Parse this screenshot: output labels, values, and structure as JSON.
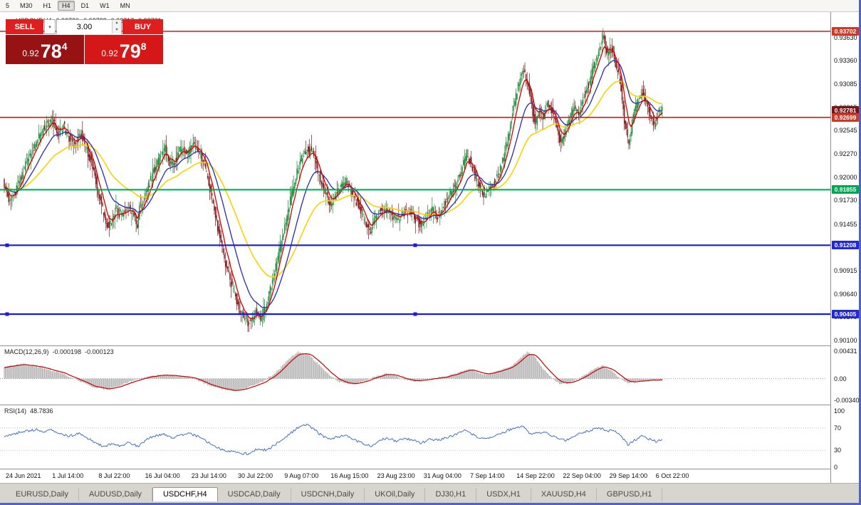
{
  "toolbar": {
    "timeframes": [
      "5",
      "M30",
      "H1",
      "H4",
      "D1",
      "W1",
      "MN"
    ],
    "active": "H4"
  },
  "chart_header": {
    "symbol": "USDCHF,H4",
    "open": "0.92730",
    "high": "0.92788",
    "low": "0.92717",
    "close": "0.92781"
  },
  "trade_panel": {
    "sell_label": "SELL",
    "buy_label": "BUY",
    "volume": "3.00",
    "sell_price": {
      "prefix": "0.92",
      "big": "78",
      "sup": "4"
    },
    "buy_price": {
      "prefix": "0.92",
      "big": "79",
      "sup": "8"
    }
  },
  "tabs": {
    "items": [
      "EURUSD,Daily",
      "AUDUSD,Daily",
      "USDCHF,H4",
      "USDCAD,Daily",
      "USDCNH,Daily",
      "UKOil,Daily",
      "DJ30,H1",
      "USDX,H1",
      "XAUUSD,H4",
      "GBPUSD,H1"
    ],
    "active": "USDCHF,H4"
  },
  "chart_data": {
    "type": "candlestick",
    "symbol": "USDCHF",
    "timeframe": "H4",
    "ohlc_current": {
      "open": 0.9273,
      "high": 0.92788,
      "low": 0.92717,
      "close": 0.92781
    },
    "bars": 590,
    "x_range": [
      6,
      930
    ],
    "y_axis_ticks": [
      "0.93630",
      "0.93360",
      "0.93085",
      "0.92815",
      "0.92545",
      "0.92270",
      "0.92000",
      "0.91730",
      "0.91455",
      "0.91185",
      "0.90915",
      "0.90640",
      "0.90370",
      "0.90100"
    ],
    "colors": {
      "bull": "#1e8c3a",
      "bear": "#7c1a1a"
    },
    "moving_averages": [
      {
        "name": "fast",
        "period": 8,
        "color": "#d40000"
      },
      {
        "name": "mid",
        "period": 24,
        "color": "#2929b8"
      },
      {
        "name": "slow",
        "period": 60,
        "color": "#ffd000"
      }
    ],
    "hlines": [
      {
        "price": 0.93702,
        "label": "0.93702",
        "color": "#cc2222",
        "label_bg": "#cc3a28",
        "width": 1.4,
        "line": true,
        "handles": false
      },
      {
        "price": 0.92781,
        "label": "0.92781",
        "color": "#7b1113",
        "label_bg": "#7b1113",
        "width": 0,
        "line": false,
        "handles": false
      },
      {
        "price": 0.92699,
        "label": "0.92699",
        "color": "#cc2222",
        "label_bg": "#cc3a28",
        "width": 1.6,
        "line": true,
        "handles": false
      },
      {
        "price": 0.91855,
        "label": "0.91855",
        "color": "#00a650",
        "label_bg": "#00a650",
        "width": 2,
        "line": true,
        "handles": false
      },
      {
        "price": 0.91208,
        "label": "0.91208",
        "color": "#1a1ae6",
        "label_bg": "#2228d8",
        "width": 2.2,
        "line": true,
        "handles": true
      },
      {
        "price": 0.90405,
        "label": "0.90405",
        "color": "#1a1ae6",
        "label_bg": "#2228d8",
        "width": 2.2,
        "line": true,
        "handles": true
      }
    ],
    "price_path": [
      [
        6,
        0.9195
      ],
      [
        14,
        0.9168
      ],
      [
        22,
        0.9182
      ],
      [
        32,
        0.9205
      ],
      [
        44,
        0.9228
      ],
      [
        56,
        0.9248
      ],
      [
        66,
        0.9262
      ],
      [
        74,
        0.9268
      ],
      [
        82,
        0.9252
      ],
      [
        90,
        0.926
      ],
      [
        98,
        0.9245
      ],
      [
        106,
        0.9238
      ],
      [
        114,
        0.9252
      ],
      [
        122,
        0.9235
      ],
      [
        130,
        0.9215
      ],
      [
        138,
        0.9185
      ],
      [
        146,
        0.9158
      ],
      [
        152,
        0.9142
      ],
      [
        158,
        0.915
      ],
      [
        164,
        0.9163
      ],
      [
        172,
        0.9155
      ],
      [
        180,
        0.9168
      ],
      [
        186,
        0.9158
      ],
      [
        190,
        0.916
      ],
      [
        193,
        0.9136
      ],
      [
        196,
        0.9165
      ],
      [
        200,
        0.917
      ],
      [
        208,
        0.9185
      ],
      [
        216,
        0.9205
      ],
      [
        224,
        0.9222
      ],
      [
        232,
        0.9235
      ],
      [
        240,
        0.9215
      ],
      [
        248,
        0.9222
      ],
      [
        256,
        0.9235
      ],
      [
        264,
        0.9228
      ],
      [
        272,
        0.924
      ],
      [
        280,
        0.9228
      ],
      [
        288,
        0.9215
      ],
      [
        296,
        0.9185
      ],
      [
        304,
        0.9152
      ],
      [
        312,
        0.9118
      ],
      [
        320,
        0.9092
      ],
      [
        328,
        0.9068
      ],
      [
        336,
        0.9048
      ],
      [
        344,
        0.9037
      ],
      [
        352,
        0.903
      ],
      [
        360,
        0.9045
      ],
      [
        368,
        0.9033
      ],
      [
        376,
        0.9055
      ],
      [
        384,
        0.9082
      ],
      [
        392,
        0.9108
      ],
      [
        400,
        0.914
      ],
      [
        408,
        0.9172
      ],
      [
        416,
        0.92
      ],
      [
        424,
        0.9222
      ],
      [
        432,
        0.9232
      ],
      [
        440,
        0.9228
      ],
      [
        448,
        0.9205
      ],
      [
        456,
        0.9185
      ],
      [
        464,
        0.9168
      ],
      [
        472,
        0.9178
      ],
      [
        480,
        0.919
      ],
      [
        488,
        0.9196
      ],
      [
        496,
        0.918
      ],
      [
        504,
        0.9168
      ],
      [
        512,
        0.9152
      ],
      [
        520,
        0.9135
      ],
      [
        528,
        0.9152
      ],
      [
        536,
        0.9165
      ],
      [
        544,
        0.9162
      ],
      [
        552,
        0.9155
      ],
      [
        560,
        0.915
      ],
      [
        568,
        0.916
      ],
      [
        576,
        0.9158
      ],
      [
        584,
        0.9152
      ],
      [
        592,
        0.9144
      ],
      [
        600,
        0.9155
      ],
      [
        608,
        0.9162
      ],
      [
        616,
        0.9155
      ],
      [
        624,
        0.9168
      ],
      [
        632,
        0.9178
      ],
      [
        640,
        0.919
      ],
      [
        648,
        0.9205
      ],
      [
        656,
        0.9228
      ],
      [
        664,
        0.9212
      ],
      [
        672,
        0.9192
      ],
      [
        680,
        0.918
      ],
      [
        688,
        0.9186
      ],
      [
        696,
        0.9196
      ],
      [
        704,
        0.921
      ],
      [
        712,
        0.9238
      ],
      [
        720,
        0.9272
      ],
      [
        728,
        0.9305
      ],
      [
        736,
        0.9328
      ],
      [
        744,
        0.9302
      ],
      [
        752,
        0.9262
      ],
      [
        758,
        0.9278
      ],
      [
        764,
        0.927
      ],
      [
        770,
        0.9288
      ],
      [
        776,
        0.9278
      ],
      [
        782,
        0.9262
      ],
      [
        788,
        0.9238
      ],
      [
        794,
        0.9252
      ],
      [
        800,
        0.9268
      ],
      [
        806,
        0.9282
      ],
      [
        812,
        0.9272
      ],
      [
        818,
        0.9288
      ],
      [
        824,
        0.9302
      ],
      [
        830,
        0.9315
      ],
      [
        836,
        0.9332
      ],
      [
        842,
        0.9348
      ],
      [
        848,
        0.9366
      ],
      [
        854,
        0.9342
      ],
      [
        860,
        0.9352
      ],
      [
        866,
        0.9328
      ],
      [
        872,
        0.931
      ],
      [
        878,
        0.9262
      ],
      [
        884,
        0.9238
      ],
      [
        890,
        0.9272
      ],
      [
        896,
        0.9288
      ],
      [
        902,
        0.93
      ],
      [
        908,
        0.9288
      ],
      [
        914,
        0.9272
      ],
      [
        920,
        0.9262
      ],
      [
        926,
        0.9278
      ]
    ],
    "macd": {
      "name": "MACD(12,26,9)",
      "value_main": "-0.000198",
      "value_signal": "-0.000123",
      "axis": [
        "0.00431",
        "0.00",
        "-0.00340"
      ],
      "hist_color": "#b4b4b4",
      "signal_color": "#cc0000",
      "path": [
        [
          6,
          0.0018
        ],
        [
          30,
          0.0023
        ],
        [
          60,
          0.0017
        ],
        [
          90,
          0.0007
        ],
        [
          110,
          -0.0003
        ],
        [
          130,
          -0.0013
        ],
        [
          150,
          -0.0017
        ],
        [
          170,
          -0.001
        ],
        [
          190,
          -0.0002
        ],
        [
          210,
          0.0004
        ],
        [
          230,
          0.0006
        ],
        [
          250,
          0.0004
        ],
        [
          270,
          0.0001
        ],
        [
          290,
          -0.0009
        ],
        [
          310,
          -0.0016
        ],
        [
          330,
          -0.0019
        ],
        [
          350,
          -0.0013
        ],
        [
          370,
          -0.0004
        ],
        [
          390,
          0.0012
        ],
        [
          405,
          0.003
        ],
        [
          418,
          0.0042
        ],
        [
          432,
          0.0039
        ],
        [
          446,
          0.0024
        ],
        [
          460,
          0.0008
        ],
        [
          474,
          -0.0004
        ],
        [
          488,
          -0.0009
        ],
        [
          502,
          -0.0007
        ],
        [
          514,
          -0.0003
        ],
        [
          526,
          0.0003
        ],
        [
          540,
          0.0008
        ],
        [
          554,
          0.0005
        ],
        [
          568,
          -0.0001
        ],
        [
          582,
          -0.0004
        ],
        [
          596,
          -0.0002
        ],
        [
          610,
          0.0001
        ],
        [
          624,
          0.0003
        ],
        [
          638,
          0.0007
        ],
        [
          650,
          0.0012
        ],
        [
          660,
          0.0015
        ],
        [
          670,
          0.001
        ],
        [
          682,
          0.0006
        ],
        [
          694,
          0.001
        ],
        [
          706,
          0.0015
        ],
        [
          718,
          0.0019
        ],
        [
          730,
          0.0032
        ],
        [
          740,
          0.0042
        ],
        [
          750,
          0.0036
        ],
        [
          762,
          0.0016
        ],
        [
          774,
          0.0002
        ],
        [
          786,
          -0.0008
        ],
        [
          798,
          -0.0007
        ],
        [
          810,
          -0.0001
        ],
        [
          822,
          0.0006
        ],
        [
          834,
          0.0015
        ],
        [
          846,
          0.0021
        ],
        [
          858,
          0.0013
        ],
        [
          870,
          0.0001
        ],
        [
          882,
          -0.0007
        ],
        [
          894,
          -0.0005
        ],
        [
          906,
          -0.0003
        ],
        [
          918,
          -0.0002
        ],
        [
          928,
          -0.0002
        ]
      ]
    },
    "rsi": {
      "name": "RSI(14)",
      "value": "48.7836",
      "axis": [
        "100",
        "70",
        "30",
        "0"
      ],
      "levels": [
        70,
        30
      ],
      "color": "#4472c4",
      "path": [
        [
          6,
          55
        ],
        [
          20,
          60
        ],
        [
          35,
          64
        ],
        [
          50,
          67
        ],
        [
          62,
          63
        ],
        [
          74,
          66
        ],
        [
          86,
          58
        ],
        [
          98,
          55
        ],
        [
          110,
          60
        ],
        [
          122,
          52
        ],
        [
          134,
          44
        ],
        [
          146,
          36
        ],
        [
          158,
          42
        ],
        [
          170,
          38
        ],
        [
          182,
          44
        ],
        [
          194,
          37
        ],
        [
          206,
          50
        ],
        [
          218,
          56
        ],
        [
          230,
          60
        ],
        [
          242,
          52
        ],
        [
          254,
          57
        ],
        [
          266,
          60
        ],
        [
          278,
          55
        ],
        [
          290,
          46
        ],
        [
          302,
          37
        ],
        [
          314,
          30
        ],
        [
          326,
          27
        ],
        [
          338,
          25
        ],
        [
          350,
          24
        ],
        [
          362,
          33
        ],
        [
          374,
          30
        ],
        [
          386,
          40
        ],
        [
          398,
          50
        ],
        [
          410,
          62
        ],
        [
          420,
          72
        ],
        [
          430,
          76
        ],
        [
          440,
          68
        ],
        [
          450,
          58
        ],
        [
          462,
          50
        ],
        [
          474,
          54
        ],
        [
          486,
          56
        ],
        [
          498,
          48
        ],
        [
          510,
          42
        ],
        [
          520,
          37
        ],
        [
          532,
          47
        ],
        [
          544,
          52
        ],
        [
          556,
          47
        ],
        [
          568,
          51
        ],
        [
          580,
          49
        ],
        [
          592,
          43
        ],
        [
          604,
          50
        ],
        [
          616,
          48
        ],
        [
          628,
          53
        ],
        [
          640,
          58
        ],
        [
          652,
          65
        ],
        [
          662,
          60
        ],
        [
          674,
          50
        ],
        [
          686,
          52
        ],
        [
          698,
          57
        ],
        [
          710,
          64
        ],
        [
          722,
          70
        ],
        [
          734,
          73
        ],
        [
          746,
          58
        ],
        [
          758,
          62
        ],
        [
          770,
          60
        ],
        [
          782,
          52
        ],
        [
          794,
          48
        ],
        [
          806,
          56
        ],
        [
          818,
          61
        ],
        [
          830,
          66
        ],
        [
          842,
          70
        ],
        [
          852,
          64
        ],
        [
          862,
          66
        ],
        [
          872,
          56
        ],
        [
          882,
          40
        ],
        [
          892,
          49
        ],
        [
          902,
          55
        ],
        [
          912,
          50
        ],
        [
          922,
          46
        ],
        [
          928,
          49
        ]
      ]
    },
    "time_labels": [
      "24 Jun 2021",
      "1 Jul 14:00",
      "8 Jul 22:00",
      "16 Jul 04:00",
      "23 Jul 14:00",
      "30 Jul 22:00",
      "9 Aug 07:00",
      "16 Aug 15:00",
      "23 Aug 23:00",
      "31 Aug 04:00",
      "7 Sep 14:00",
      "14 Sep 22:00",
      "22 Sep 04:00",
      "29 Sep 14:00",
      "6 Oct 22:00"
    ]
  }
}
